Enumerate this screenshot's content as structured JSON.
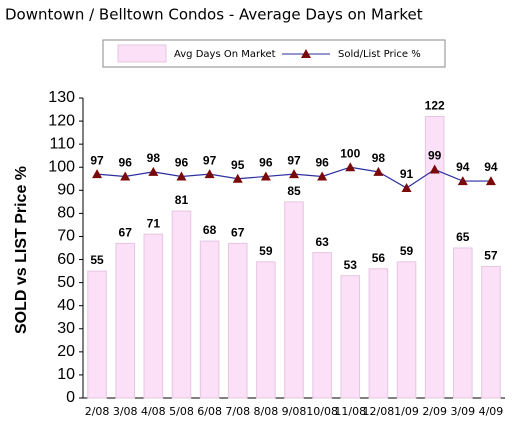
{
  "chart_data": {
    "type": "bar",
    "title": "Downtown / Belltown Condos - Average Days on Market",
    "y_label": "SOLD vs LIST Price %",
    "categories": [
      "2/08",
      "3/08",
      "4/08",
      "5/08",
      "6/08",
      "7/08",
      "8/08",
      "9/08",
      "10/08",
      "11/08",
      "12/08",
      "1/09",
      "2/09",
      "3/09",
      "4/09"
    ],
    "series": [
      {
        "name": "Avg Days On Market",
        "type": "bar",
        "color": "#fbe0f7",
        "values": [
          55,
          67,
          71,
          81,
          68,
          67,
          59,
          85,
          63,
          53,
          56,
          59,
          122,
          65,
          57
        ]
      },
      {
        "name": "Sold/List Price %",
        "type": "line",
        "color": "#2e2e9e",
        "marker_color": "#7a0a0a",
        "values": [
          97,
          96,
          98,
          96,
          97,
          95,
          96,
          97,
          96,
          100,
          98,
          91,
          99,
          94,
          94
        ]
      }
    ],
    "ylim": [
      0,
      130
    ],
    "yticks": [
      0,
      10,
      20,
      30,
      40,
      50,
      60,
      70,
      80,
      90,
      100,
      110,
      120,
      130
    ],
    "grid": false
  }
}
